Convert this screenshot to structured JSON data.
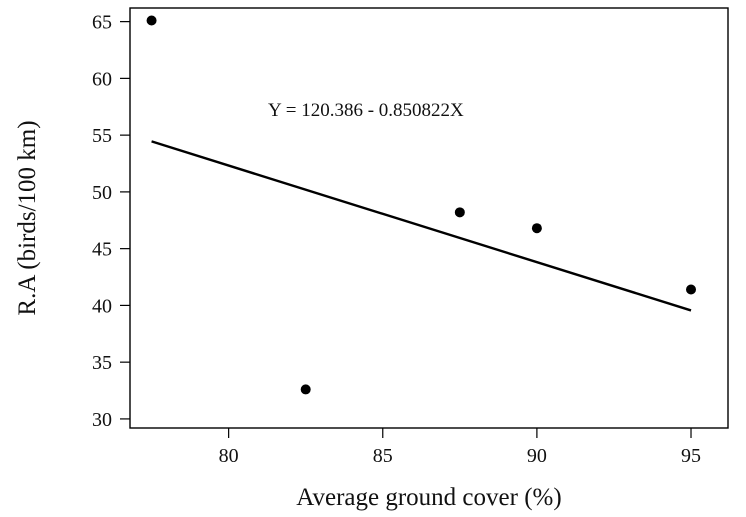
{
  "chart_data": {
    "type": "scatter",
    "title": "",
    "xlabel": "Average ground cover (%)",
    "ylabel": "R.A (birds/100 km)",
    "xlim": [
      76.8,
      96.2
    ],
    "ylim": [
      29.2,
      66.2
    ],
    "x_ticks": [
      80,
      85,
      90,
      95
    ],
    "y_ticks": [
      30,
      35,
      40,
      45,
      50,
      55,
      60,
      65
    ],
    "grid": false,
    "legend": "none",
    "points": [
      {
        "x": 77.5,
        "y": 65.1
      },
      {
        "x": 82.5,
        "y": 32.6
      },
      {
        "x": 87.5,
        "y": 48.2
      },
      {
        "x": 90.0,
        "y": 46.8
      },
      {
        "x": 95.0,
        "y": 41.4
      }
    ],
    "fit_line": {
      "equation": "Y = 120.386 - 0.850822X",
      "intercept": 120.386,
      "slope": -0.850822,
      "x_range": [
        77.5,
        95.0
      ]
    },
    "colors": {
      "marks": "#000000",
      "axis": "#000000",
      "text": "#111111"
    }
  }
}
